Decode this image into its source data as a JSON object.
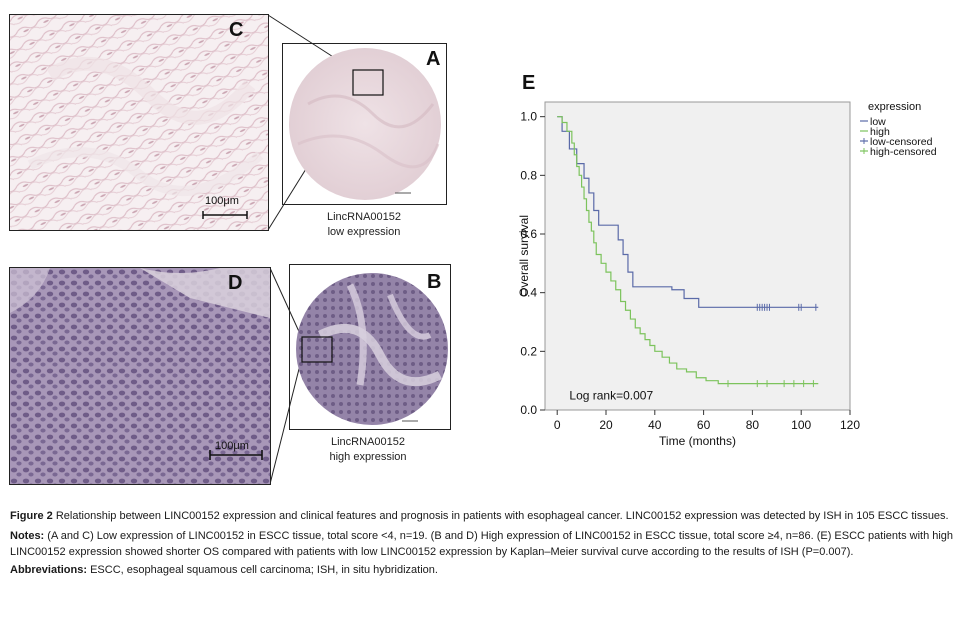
{
  "panels": {
    "C": {
      "letter": "C",
      "scale_bar": "100μm"
    },
    "A": {
      "letter": "A",
      "caption_line1": "LincRNA00152",
      "caption_line2": "low expression"
    },
    "D": {
      "letter": "D",
      "scale_bar": "100μm"
    },
    "B": {
      "letter": "B",
      "caption_line1": "LincRNA00152",
      "caption_line2": "high expression"
    },
    "E": {
      "letter": "E"
    }
  },
  "colors": {
    "low_ish": "#e8dce0",
    "high_ish": "#8a7aa0",
    "low_line": "#5a6aa8",
    "high_line": "#7cc35c",
    "plot_bg": "#f0f0f0"
  },
  "chart_data": {
    "type": "line",
    "title": "",
    "xlabel": "Time (months)",
    "ylabel": "Overall survival",
    "xlim": [
      -5,
      120
    ],
    "ylim": [
      0.0,
      1.05
    ],
    "xticks": [
      0,
      20,
      40,
      60,
      80,
      100,
      120
    ],
    "yticks": [
      0.0,
      0.2,
      0.4,
      0.6,
      0.8,
      1.0
    ],
    "ytick_labels": [
      "0.0",
      "0.2",
      "0.4",
      "0.6",
      "0.8",
      "1.0"
    ],
    "annotation": "Log rank=0.007",
    "legend_title": "expression",
    "legend_entries": [
      "low",
      "high",
      "low-censored",
      "high-censored"
    ],
    "legend_position": "top-right",
    "series": [
      {
        "name": "low",
        "color": "#5a6aa8",
        "steps": [
          [
            0,
            1.0
          ],
          [
            2,
            0.95
          ],
          [
            5,
            0.89
          ],
          [
            8,
            0.84
          ],
          [
            11,
            0.79
          ],
          [
            13,
            0.74
          ],
          [
            15,
            0.68
          ],
          [
            17,
            0.63
          ],
          [
            25,
            0.58
          ],
          [
            27,
            0.53
          ],
          [
            29,
            0.47
          ],
          [
            31,
            0.42
          ],
          [
            47,
            0.41
          ],
          [
            52,
            0.38
          ],
          [
            58,
            0.35
          ],
          [
            107,
            0.35
          ]
        ],
        "censored_x": [
          82,
          83,
          84,
          85,
          86,
          87,
          99,
          100,
          106
        ]
      },
      {
        "name": "high",
        "color": "#7cc35c",
        "steps": [
          [
            0,
            1.0
          ],
          [
            2,
            0.98
          ],
          [
            4,
            0.95
          ],
          [
            6,
            0.91
          ],
          [
            7,
            0.87
          ],
          [
            8,
            0.83
          ],
          [
            9,
            0.8
          ],
          [
            10,
            0.76
          ],
          [
            11,
            0.72
          ],
          [
            12,
            0.68
          ],
          [
            13,
            0.64
          ],
          [
            14,
            0.61
          ],
          [
            15,
            0.57
          ],
          [
            16,
            0.53
          ],
          [
            18,
            0.5
          ],
          [
            20,
            0.47
          ],
          [
            22,
            0.44
          ],
          [
            24,
            0.41
          ],
          [
            26,
            0.37
          ],
          [
            28,
            0.34
          ],
          [
            30,
            0.31
          ],
          [
            32,
            0.28
          ],
          [
            34,
            0.26
          ],
          [
            36,
            0.24
          ],
          [
            38,
            0.22
          ],
          [
            40,
            0.2
          ],
          [
            43,
            0.18
          ],
          [
            46,
            0.16
          ],
          [
            49,
            0.14
          ],
          [
            53,
            0.13
          ],
          [
            57,
            0.11
          ],
          [
            61,
            0.1
          ],
          [
            66,
            0.09
          ],
          [
            107,
            0.09
          ]
        ],
        "censored_x": [
          70,
          82,
          86,
          93,
          97,
          101,
          105
        ]
      }
    ]
  },
  "caption": {
    "fig_label": "Figure 2",
    "fig_text": " Relationship between LINC00152 expression and clinical features and prognosis in patients with esophageal cancer. LINC00152 expression was detected by ISH in 105 ESCC tissues.",
    "notes_label": "Notes:",
    "notes_text": " (A and C) Low expression of LINC00152 in ESCC tissue, total score <4, n=19. (B and D) High expression of LINC00152 in ESCC tissue, total score ≥4, n=86. (E) ESCC patients with high LINC00152 expression showed shorter OS compared with patients with low LINC00152 expression by Kaplan–Meier survival curve according to the results of ISH (P=0.007).",
    "abbr_label": "Abbreviations:",
    "abbr_text": " ESCC, esophageal squamous cell carcinoma; ISH, in situ hybridization."
  }
}
